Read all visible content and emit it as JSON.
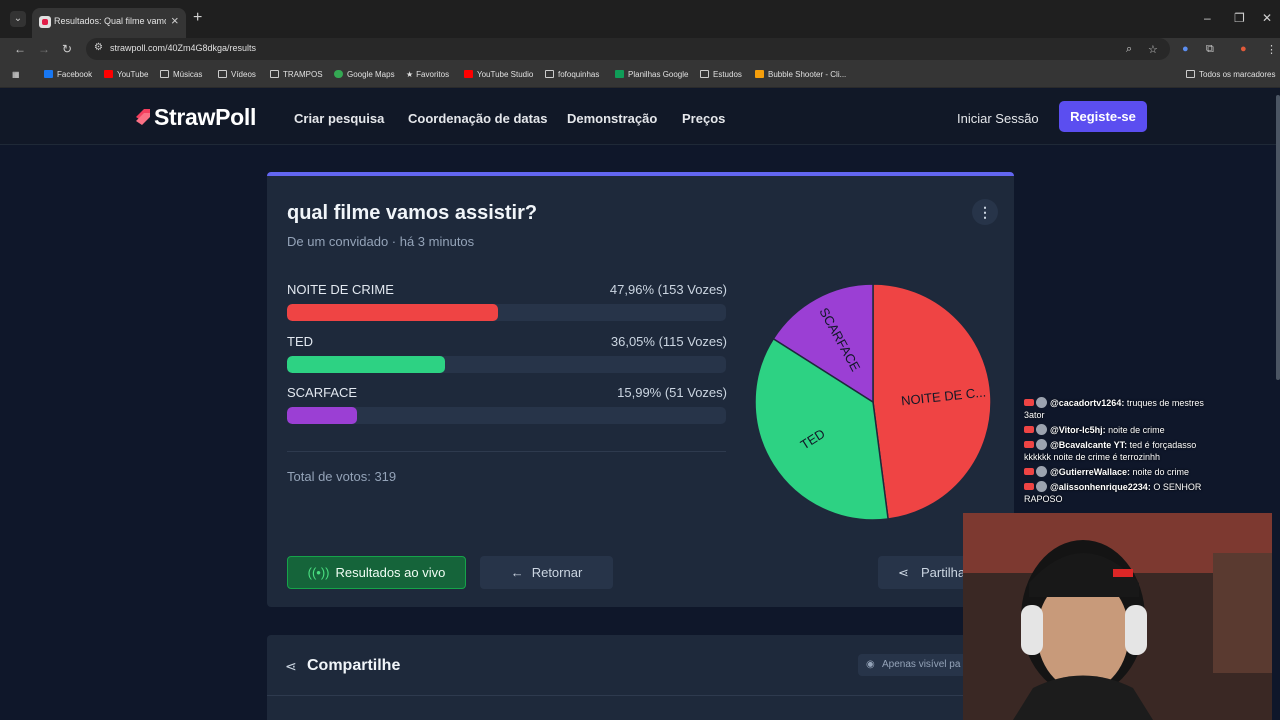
{
  "browser": {
    "tab_title": "Resultados: Qual filme vamos a",
    "url": "strawpoll.com/40Zm4G8dkga/results",
    "bookmarks": [
      "Facebook",
      "YouTube",
      "Músicas",
      "Vídeos",
      "TRAMPOS",
      "Google Maps",
      "Favoritos",
      "YouTube Studio",
      "fofoquinhas",
      "Planilhas Google",
      "Estudos",
      "Bubble Shooter - Cli...",
      "Todos os marcadores"
    ]
  },
  "site": {
    "logo": "StrawPoll",
    "nav": [
      "Criar pesquisa",
      "Coordenação de datas",
      "Demonstração",
      "Preços"
    ],
    "login": "Iniciar Sessão",
    "signup": "Registe-se"
  },
  "poll": {
    "question": "qual filme vamos assistir?",
    "subtitle": "De um convidado · há 3 minutos",
    "options": [
      {
        "label": "NOITE DE CRIME",
        "value": "47,96% (153 Vozes)",
        "percent": 47.96,
        "color": "#ef4444"
      },
      {
        "label": "TED",
        "value": "36,05% (115 Vozes)",
        "percent": 36.05,
        "color": "#2dd283"
      },
      {
        "label": "SCARFACE",
        "value": "15,99% (51 Vozes)",
        "percent": 15.99,
        "color": "#9b3fd4"
      }
    ],
    "total": "Total de votos: 319",
    "pie_labels": [
      "NOITE DE C...",
      "TED",
      "SCARFACE"
    ],
    "buttons": {
      "live": "Resultados ao vivo",
      "back": "Retornar",
      "share": "Partilha"
    }
  },
  "share_section": {
    "title": "Compartilhe",
    "visibility": "Apenas visível pa"
  },
  "chat": [
    {
      "user": "@cacadortv1264:",
      "msg": "truques de mestres 3ator"
    },
    {
      "user": "@Vitor-lc5hj:",
      "msg": "noite de crime"
    },
    {
      "user": "@Bcavalcante YT:",
      "msg": "ted é forçadasso kkkkkk noite de crime é terrozinhh"
    },
    {
      "user": "@GutierreWallace:",
      "msg": "noite do crime"
    },
    {
      "user": "@alissonhenrique2234:",
      "msg": "O SENHOR RAPOSO"
    }
  ]
}
